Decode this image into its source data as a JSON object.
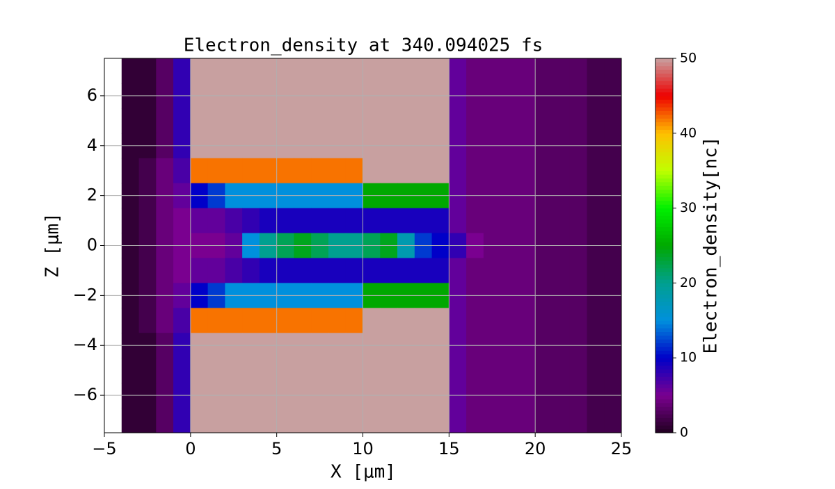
{
  "chart_data": {
    "type": "heatmap",
    "title": "Electron_density at 340.094025 fs",
    "x_label": "X [μm]",
    "y_label": "Z [μm]",
    "colorbar_label": "Electron_density[nc]",
    "x": [
      -4.5,
      -3.5,
      -2.5,
      -1.5,
      -0.5,
      0.5,
      1.5,
      2.5,
      3.5,
      4.5,
      5.5,
      6.5,
      7.5,
      8.5,
      9.5,
      10.5,
      11.5,
      12.5,
      13.5,
      14.5,
      15.5,
      16.5,
      17.5,
      18.5,
      19.5,
      20.5,
      21.5,
      22.5,
      23.5,
      24.5
    ],
    "y": [
      7,
      6,
      5,
      4,
      3,
      2,
      1,
      0,
      -1,
      -2,
      -3,
      -4,
      -5,
      -6,
      -7
    ],
    "z": [
      [
        null,
        1,
        1,
        3,
        8,
        55,
        55,
        55,
        55,
        55,
        55,
        55,
        55,
        55,
        55,
        55,
        55,
        55,
        55,
        55,
        6,
        4,
        4,
        4,
        4,
        3,
        3,
        3,
        2,
        2
      ],
      [
        null,
        1,
        1,
        3,
        8,
        55,
        55,
        55,
        55,
        55,
        55,
        55,
        55,
        55,
        55,
        55,
        55,
        55,
        55,
        55,
        6,
        4,
        4,
        4,
        4,
        3,
        3,
        3,
        2,
        2
      ],
      [
        null,
        1,
        1,
        3,
        8,
        55,
        55,
        55,
        55,
        55,
        55,
        55,
        55,
        55,
        55,
        55,
        55,
        55,
        55,
        55,
        6,
        4,
        4,
        4,
        4,
        3,
        3,
        3,
        2,
        2
      ],
      [
        null,
        1,
        1,
        3,
        8,
        55,
        55,
        55,
        55,
        55,
        55,
        55,
        55,
        55,
        55,
        55,
        55,
        55,
        55,
        55,
        6,
        4,
        4,
        4,
        4,
        3,
        3,
        3,
        2,
        2
      ],
      [
        null,
        1,
        2,
        4,
        7,
        42,
        42,
        42,
        42,
        42,
        42,
        42,
        42,
        42,
        42,
        50,
        50,
        50,
        50,
        50,
        6,
        4,
        4,
        4,
        4,
        3,
        3,
        3,
        2,
        2
      ],
      [
        null,
        1,
        2,
        4,
        6,
        10,
        12,
        15,
        15,
        15,
        15,
        15,
        15,
        15,
        15,
        25,
        25,
        25,
        25,
        25,
        6,
        4,
        4,
        4,
        4,
        3,
        3,
        3,
        2,
        2
      ],
      [
        null,
        1,
        2,
        4,
        5,
        6,
        6,
        7,
        8,
        9,
        9,
        9,
        9,
        9,
        9,
        9,
        9,
        9,
        9,
        9,
        6,
        4,
        4,
        4,
        4,
        3,
        3,
        3,
        2,
        2
      ],
      [
        null,
        1,
        2,
        4,
        5,
        5,
        5,
        6,
        15,
        20,
        22,
        24,
        22,
        20,
        20,
        22,
        24,
        18,
        12,
        10,
        8,
        5,
        4,
        4,
        4,
        3,
        3,
        3,
        2,
        2
      ],
      [
        null,
        1,
        2,
        4,
        5,
        6,
        6,
        7,
        8,
        9,
        9,
        9,
        9,
        9,
        9,
        9,
        9,
        9,
        9,
        9,
        6,
        4,
        4,
        4,
        4,
        3,
        3,
        3,
        2,
        2
      ],
      [
        null,
        1,
        2,
        4,
        6,
        10,
        12,
        15,
        15,
        15,
        15,
        15,
        15,
        15,
        15,
        25,
        25,
        25,
        25,
        25,
        6,
        4,
        4,
        4,
        4,
        3,
        3,
        3,
        2,
        2
      ],
      [
        null,
        1,
        2,
        4,
        7,
        42,
        42,
        42,
        42,
        42,
        42,
        42,
        42,
        42,
        42,
        50,
        50,
        50,
        50,
        50,
        6,
        4,
        4,
        4,
        4,
        3,
        3,
        3,
        2,
        2
      ],
      [
        null,
        1,
        1,
        3,
        8,
        55,
        55,
        55,
        55,
        55,
        55,
        55,
        55,
        55,
        55,
        55,
        55,
        55,
        55,
        55,
        6,
        4,
        4,
        4,
        4,
        3,
        3,
        3,
        2,
        2
      ],
      [
        null,
        1,
        1,
        3,
        8,
        55,
        55,
        55,
        55,
        55,
        55,
        55,
        55,
        55,
        55,
        55,
        55,
        55,
        55,
        55,
        6,
        4,
        4,
        4,
        4,
        3,
        3,
        3,
        2,
        2
      ],
      [
        null,
        1,
        1,
        3,
        8,
        55,
        55,
        55,
        55,
        55,
        55,
        55,
        55,
        55,
        55,
        55,
        55,
        55,
        55,
        55,
        6,
        4,
        4,
        4,
        4,
        3,
        3,
        3,
        2,
        2
      ],
      [
        null,
        1,
        1,
        3,
        8,
        55,
        55,
        55,
        55,
        55,
        55,
        55,
        55,
        55,
        55,
        55,
        55,
        55,
        55,
        55,
        6,
        4,
        4,
        4,
        4,
        3,
        3,
        3,
        2,
        2
      ]
    ],
    "xlim": [
      -5,
      25
    ],
    "ylim": [
      -7.5,
      7.5
    ],
    "xticks": [
      {
        "value": -5,
        "label": "−5"
      },
      0,
      5,
      10,
      15,
      20,
      25
    ],
    "yticks": [
      {
        "value": -6,
        "label": "−6"
      },
      {
        "value": -4,
        "label": "−4"
      },
      {
        "value": -2,
        "label": "−2"
      },
      0,
      2,
      4,
      6
    ],
    "zlim": [
      0,
      50
    ],
    "zticks": [
      0,
      10,
      20,
      30,
      40,
      50
    ],
    "colormap": [
      "#200020",
      "#7a0090",
      "#0000c8",
      "#0090dd",
      "#00a090",
      "#00a800",
      "#00f000",
      "#c0ff00",
      "#ffc000",
      "#ee0000",
      "#c8a0a0"
    ],
    "grid": true
  }
}
